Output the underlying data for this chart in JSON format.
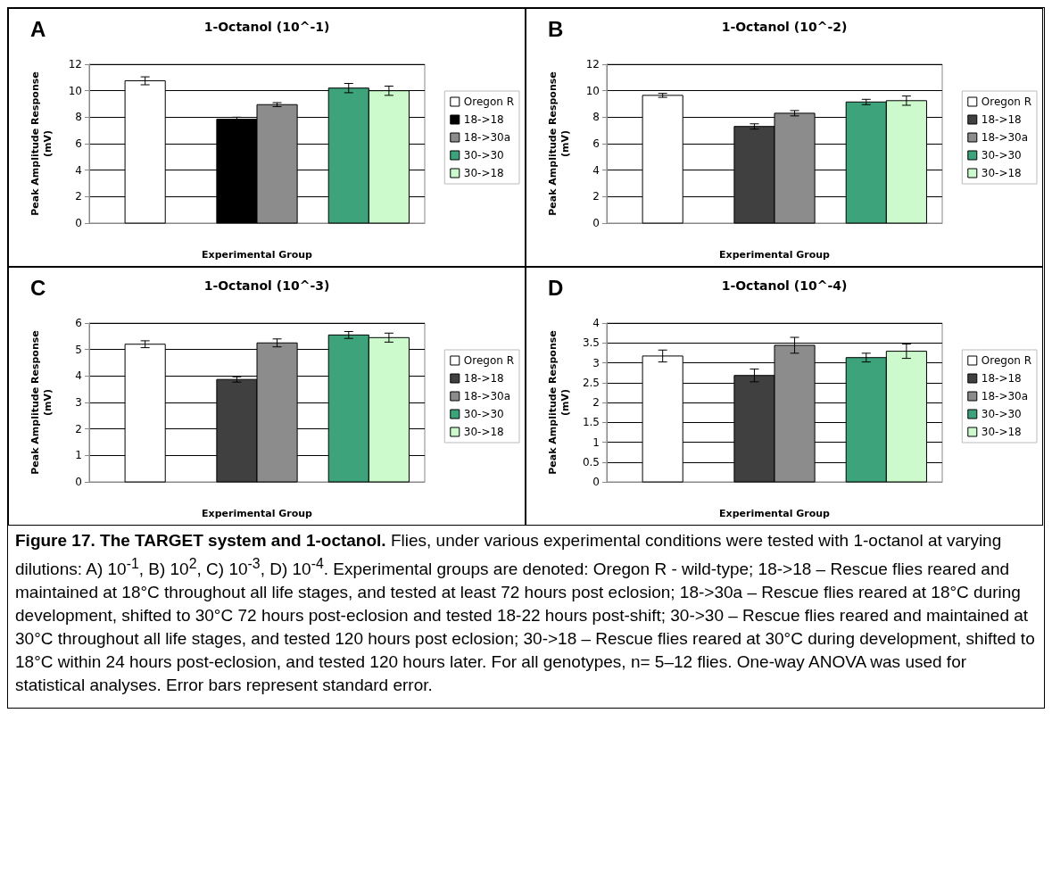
{
  "chart_data": [
    {
      "type": "bar",
      "title": "1-Octanol (10^-1)",
      "xlabel": "Experimental Group",
      "ylabel": "Peak Amplitude Response (mV)",
      "categories": [
        null,
        null,
        null
      ],
      "ylim": [
        0,
        12
      ],
      "yticks": [
        0,
        2,
        4,
        6,
        8,
        10,
        12
      ],
      "grid": "y",
      "legend": "right",
      "annotations": [
        "A"
      ],
      "series": [
        {
          "name": "Oregon R",
          "color": "#ffffff",
          "values": [
            10.75,
            null,
            null
          ],
          "errors": [
            0.3,
            null,
            null
          ]
        },
        {
          "name": "18->18",
          "color": "#000000",
          "values": [
            null,
            7.85,
            null
          ],
          "errors": [
            null,
            0.15,
            null
          ]
        },
        {
          "name": "18->30a",
          "color": "#8c8c8c",
          "values": [
            null,
            8.95,
            null
          ],
          "errors": [
            null,
            0.15,
            null
          ]
        },
        {
          "name": "30->30",
          "color": "#3ca37a",
          "values": [
            null,
            null,
            10.2
          ],
          "errors": [
            null,
            null,
            0.35
          ]
        },
        {
          "name": "30->18",
          "color": "#ccfacc",
          "values": [
            null,
            null,
            10.0
          ],
          "errors": [
            null,
            null,
            0.35
          ]
        }
      ]
    },
    {
      "type": "bar",
      "title": "1-Octanol (10^-2)",
      "xlabel": "Experimental Group",
      "ylabel": "Peak Amplitude Response (mV)",
      "categories": [
        null,
        null,
        null
      ],
      "ylim": [
        0,
        12
      ],
      "yticks": [
        0,
        2,
        4,
        6,
        8,
        10,
        12
      ],
      "grid": "y",
      "legend": "right",
      "annotations": [
        "B"
      ],
      "series": [
        {
          "name": "Oregon R",
          "color": "#ffffff",
          "values": [
            9.65,
            null,
            null
          ],
          "errors": [
            0.15,
            null,
            null
          ]
        },
        {
          "name": "18->18",
          "color": "#404040",
          "values": [
            null,
            7.3,
            null
          ],
          "errors": [
            null,
            0.2,
            null
          ]
        },
        {
          "name": "18->30a",
          "color": "#8c8c8c",
          "values": [
            null,
            8.3,
            null
          ],
          "errors": [
            null,
            0.2,
            null
          ]
        },
        {
          "name": "30->30",
          "color": "#3ca37a",
          "values": [
            null,
            null,
            9.15
          ],
          "errors": [
            null,
            null,
            0.2
          ]
        },
        {
          "name": "30->18",
          "color": "#ccfacc",
          "values": [
            null,
            null,
            9.25
          ],
          "errors": [
            null,
            null,
            0.35
          ]
        }
      ]
    },
    {
      "type": "bar",
      "title": "1-Octanol (10^-3)",
      "xlabel": "Experimental Group",
      "ylabel": "Peak Amplitude Response (mV)",
      "categories": [
        null,
        null,
        null
      ],
      "ylim": [
        0,
        6
      ],
      "yticks": [
        0,
        1,
        2,
        3,
        4,
        5,
        6
      ],
      "grid": "y",
      "legend": "right",
      "annotations": [
        "C"
      ],
      "series": [
        {
          "name": "Oregon R",
          "color": "#ffffff",
          "values": [
            5.2,
            null,
            null
          ],
          "errors": [
            0.13,
            null,
            null
          ]
        },
        {
          "name": "18->18",
          "color": "#404040",
          "values": [
            null,
            3.87,
            null
          ],
          "errors": [
            null,
            0.1,
            null
          ]
        },
        {
          "name": "18->30a",
          "color": "#8c8c8c",
          "values": [
            null,
            5.25,
            null
          ],
          "errors": [
            null,
            0.15,
            null
          ]
        },
        {
          "name": "30->30",
          "color": "#3ca37a",
          "values": [
            null,
            null,
            5.55
          ],
          "errors": [
            null,
            null,
            0.13
          ]
        },
        {
          "name": "30->18",
          "color": "#ccfacc",
          "values": [
            null,
            null,
            5.45
          ],
          "errors": [
            null,
            null,
            0.17
          ]
        }
      ]
    },
    {
      "type": "bar",
      "title": "1-Octanol (10^-4)",
      "xlabel": "Experimental Group",
      "ylabel": "Peak Amplitude Response (mV)",
      "categories": [
        null,
        null,
        null
      ],
      "ylim": [
        0,
        4
      ],
      "yticks": [
        0,
        0.5,
        1,
        1.5,
        2,
        2.5,
        3,
        3.5,
        4
      ],
      "grid": "y",
      "legend": "right",
      "annotations": [
        "D",
        "Figure 17. The TARGET system and 1-octanol.",
        "Flies, under various experimental conditions were tested with 1-octanol at varying dilutions: A) 10$^{-1}$, B) 10$^{2}$, C) 10$^{-3}$, D) 10$^{-4}$. Experimental groups are denoted: Oregon R - wild-type; 18->18 – Rescue flies reared and maintained at 18°C throughout all life stages, and tested at least 72 hours post eclosion; 18->30a – Rescue flies reared at 18°C during development, shifted to 30°C 72 hours post-eclosion and tested 18-22 hours post-shift; 30->30 – Rescue flies reared and maintained at 30°C throughout all life stages, and tested 120 hours post eclosion; 30->18 – Rescue flies reared at 30°C during development, shifted to 18°C within 24 hours post-eclosion, and tested 120 hours later. For all genotypes, n= 5–12 flies. One-way ANOVA was used for statistical analyses. Error bars represent standard error."
      ],
      "series": [
        {
          "name": "Oregon R",
          "color": "#ffffff",
          "values": [
            3.17,
            null,
            null
          ],
          "errors": [
            0.15,
            null,
            null
          ]
        },
        {
          "name": "18->18",
          "color": "#404040",
          "values": [
            null,
            2.68,
            null
          ],
          "errors": [
            null,
            0.16,
            null
          ]
        },
        {
          "name": "18->30a",
          "color": "#8c8c8c",
          "values": [
            null,
            3.44,
            null
          ],
          "errors": [
            null,
            0.2,
            null
          ]
        },
        {
          "name": "30->30",
          "color": "#3ca37a",
          "values": [
            null,
            null,
            3.13
          ],
          "errors": [
            null,
            null,
            0.11
          ]
        },
        {
          "name": "30->18",
          "color": "#ccfacc",
          "values": [
            null,
            null,
            3.29
          ],
          "errors": [
            null,
            null,
            0.18
          ]
        }
      ]
    }
  ]
}
